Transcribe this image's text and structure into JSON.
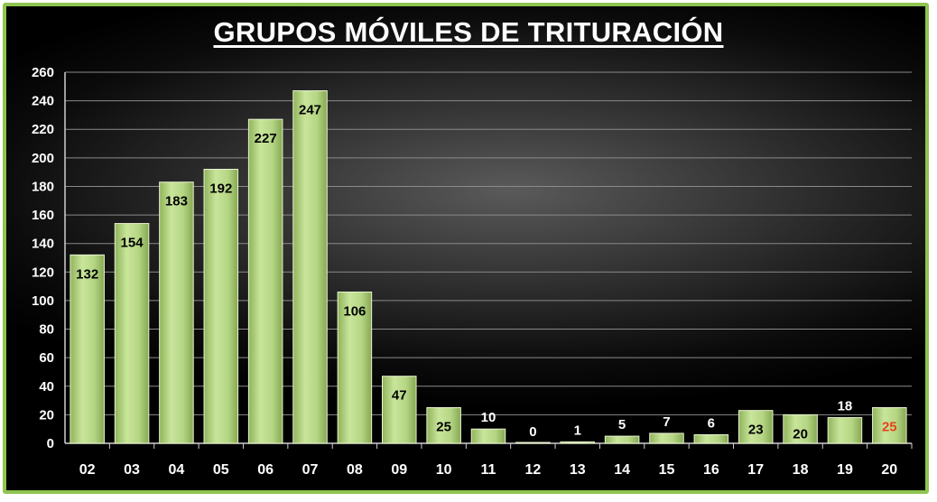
{
  "chart_data": {
    "type": "bar",
    "title": "GRUPOS MÓVILES DE TRITURACIÓN",
    "categories": [
      "02",
      "03",
      "04",
      "05",
      "06",
      "07",
      "08",
      "09",
      "10",
      "11",
      "12",
      "13",
      "14",
      "15",
      "16",
      "17",
      "18",
      "19",
      "20"
    ],
    "values": [
      132,
      154,
      183,
      192,
      227,
      247,
      106,
      47,
      25,
      10,
      0,
      1,
      5,
      7,
      6,
      23,
      20,
      18,
      25
    ],
    "labels": [
      "132",
      "154",
      "183",
      "192",
      "227",
      "247",
      "106",
      "47",
      "25",
      "10",
      "0",
      "1",
      "5",
      "7",
      "6",
      "23",
      "20",
      "18",
      "25"
    ],
    "yticks": [
      "0",
      "20",
      "40",
      "60",
      "80",
      "100",
      "120",
      "140",
      "160",
      "180",
      "200",
      "220",
      "240",
      "260"
    ],
    "ylim": [
      0,
      260
    ],
    "grid": true,
    "legend": "none",
    "colors": {
      "bar": "#b5d684",
      "bar_dark": "#8fb35a",
      "frame": "#8fc450",
      "label_dark": "#000000",
      "label_light": "#ffffff",
      "label_highlight": "#e8401c"
    }
  }
}
